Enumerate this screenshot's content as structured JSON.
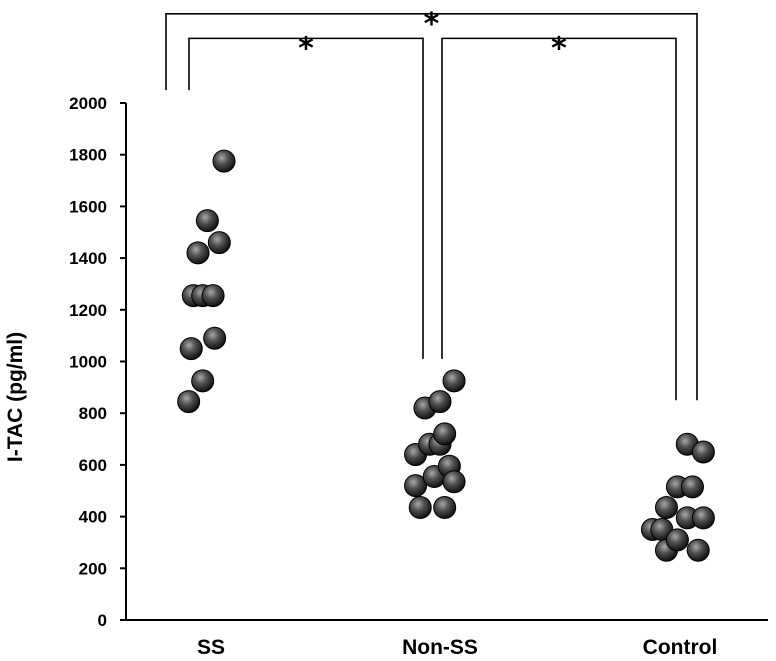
{
  "chart_data": {
    "type": "scatter",
    "title": "",
    "xlabel": "",
    "ylabel": "I-TAC (pg/ml)",
    "ylim": [
      0,
      2000
    ],
    "yticks": [
      "0",
      "200",
      "400",
      "600",
      "800",
      "1000",
      "1200",
      "1400",
      "1600",
      "1800",
      "2000"
    ],
    "categories": [
      "SS",
      "Non-SS",
      "Control"
    ],
    "series": [
      {
        "name": "SS",
        "points": [
          {
            "jitter": -0.43,
            "value": 845
          },
          {
            "jitter": -0.16,
            "value": 925
          },
          {
            "jitter": -0.38,
            "value": 1050
          },
          {
            "jitter": 0.07,
            "value": 1090
          },
          {
            "jitter": -0.34,
            "value": 1255
          },
          {
            "jitter": -0.16,
            "value": 1255
          },
          {
            "jitter": 0.04,
            "value": 1255
          },
          {
            "jitter": -0.25,
            "value": 1420
          },
          {
            "jitter": 0.16,
            "value": 1460
          },
          {
            "jitter": -0.07,
            "value": 1545
          },
          {
            "jitter": 0.25,
            "value": 1775
          }
        ]
      },
      {
        "name": "Non-SS",
        "points": [
          {
            "jitter": -0.47,
            "value": 520
          },
          {
            "jitter": -0.47,
            "value": 640
          },
          {
            "jitter": -0.38,
            "value": 435
          },
          {
            "jitter": -0.29,
            "value": 820
          },
          {
            "jitter": -0.2,
            "value": 680
          },
          {
            "jitter": -0.11,
            "value": 555
          },
          {
            "jitter": 0.0,
            "value": 680
          },
          {
            "jitter": 0.0,
            "value": 845
          },
          {
            "jitter": 0.09,
            "value": 720
          },
          {
            "jitter": 0.09,
            "value": 435
          },
          {
            "jitter": 0.18,
            "value": 595
          },
          {
            "jitter": 0.27,
            "value": 535
          },
          {
            "jitter": 0.27,
            "value": 925
          }
        ]
      },
      {
        "name": "Control",
        "points": [
          {
            "jitter": -0.53,
            "value": 350
          },
          {
            "jitter": -0.35,
            "value": 350
          },
          {
            "jitter": -0.26,
            "value": 270
          },
          {
            "jitter": -0.26,
            "value": 435
          },
          {
            "jitter": -0.05,
            "value": 515
          },
          {
            "jitter": -0.05,
            "value": 310
          },
          {
            "jitter": 0.14,
            "value": 680
          },
          {
            "jitter": 0.14,
            "value": 395
          },
          {
            "jitter": 0.24,
            "value": 515
          },
          {
            "jitter": 0.35,
            "value": 270
          },
          {
            "jitter": 0.45,
            "value": 395
          },
          {
            "jitter": 0.45,
            "value": 650
          }
        ]
      }
    ],
    "annotations": [
      {
        "label": "*",
        "from": "SS",
        "to": "Control",
        "from_value": 2050,
        "to_value": 850,
        "bar_value": 2345
      },
      {
        "label": "*",
        "from": "SS",
        "to": "Non-SS",
        "from_value": 2050,
        "to_value": 1010,
        "bar_value": 2250
      },
      {
        "label": "*",
        "from": "Non-SS",
        "to": "Control",
        "from_value": 1010,
        "to_value": 850,
        "bar_value": 2250
      }
    ]
  }
}
